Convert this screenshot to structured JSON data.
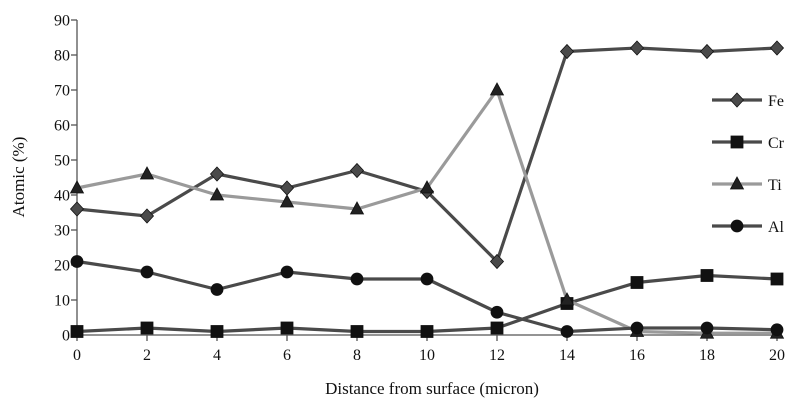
{
  "chart_data": {
    "type": "line",
    "title": "",
    "xlabel": "Distance from surface (micron)",
    "ylabel": "Atomic (%)",
    "x": [
      0,
      2,
      4,
      6,
      8,
      10,
      12,
      14,
      16,
      18,
      20
    ],
    "xlim": [
      0,
      20
    ],
    "ylim": [
      0,
      90
    ],
    "x_ticks": [
      0,
      2,
      4,
      6,
      8,
      10,
      12,
      14,
      16,
      18,
      20
    ],
    "y_ticks": [
      0,
      10,
      20,
      30,
      40,
      50,
      60,
      70,
      80,
      90
    ],
    "grid": false,
    "legend_position": "right",
    "series": [
      {
        "name": "Fe",
        "marker": "diamond",
        "color": "#4a4a4a",
        "values": [
          36,
          34,
          46,
          42,
          47,
          41,
          21,
          81,
          82,
          81,
          82
        ]
      },
      {
        "name": "Cr",
        "marker": "square",
        "color": "#4a4a4a",
        "values": [
          1,
          2,
          1,
          2,
          1,
          1,
          2,
          9,
          15,
          17,
          16
        ]
      },
      {
        "name": "Ti",
        "marker": "triangle",
        "color": "#9a9a9a",
        "values": [
          42,
          46,
          40,
          38,
          36,
          42,
          70,
          10,
          1,
          0.5,
          0.5
        ]
      },
      {
        "name": "Al",
        "marker": "circle",
        "color": "#4a4a4a",
        "values": [
          21,
          18,
          13,
          18,
          16,
          16,
          6.5,
          1,
          2,
          2,
          1.5
        ]
      }
    ]
  }
}
